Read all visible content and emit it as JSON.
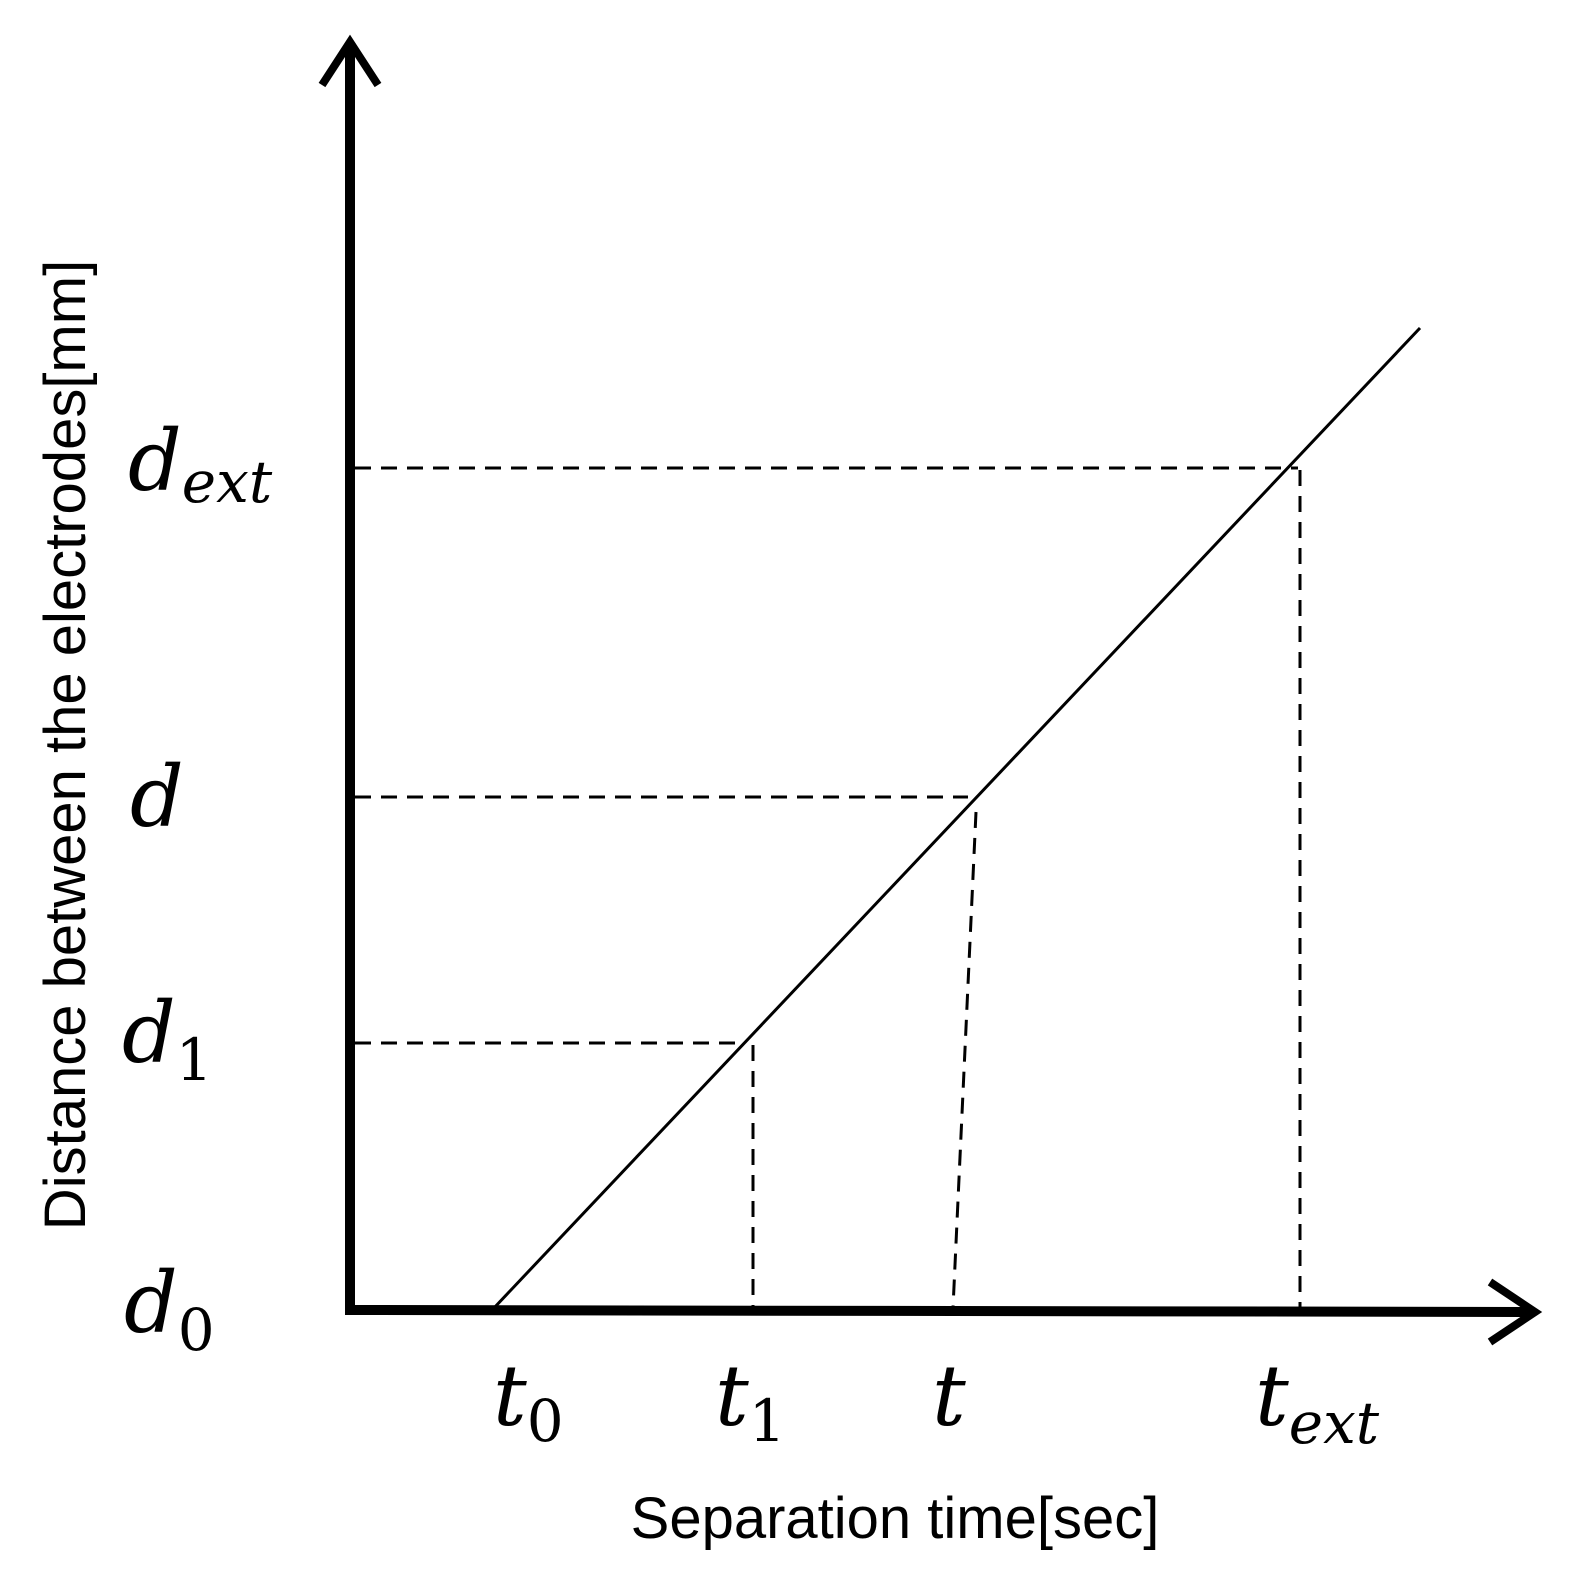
{
  "axes": {
    "x_label": "Separation time[sec]",
    "y_label": "Distance between the electrodes[mm]"
  },
  "y_marks": [
    {
      "symbol": "d",
      "subscript": "ext"
    },
    {
      "symbol": "d"
    },
    {
      "symbol": "d",
      "subscript": "1"
    },
    {
      "symbol": "d",
      "subscript": "0"
    }
  ],
  "x_marks": [
    {
      "symbol": "t",
      "subscript": "0"
    },
    {
      "symbol": "t",
      "subscript": "1"
    },
    {
      "symbol": "t"
    },
    {
      "symbol": "t",
      "subscript": "ext"
    }
  ]
}
